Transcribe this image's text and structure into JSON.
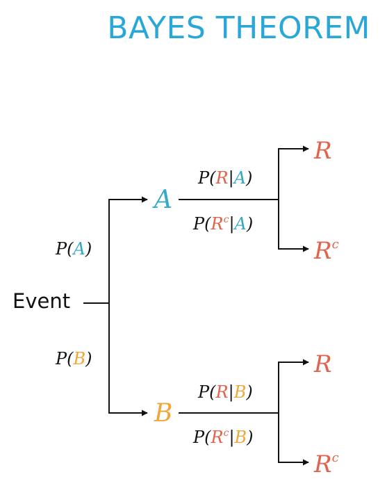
{
  "title": "BAYES THEOREM",
  "colors": {
    "title": "#29a8d8",
    "event_a": "#35a9c8",
    "event_b": "#f0a73a",
    "result": "#e2624c",
    "ink": "#111111"
  },
  "root": {
    "label": "Event"
  },
  "branch_a": {
    "prob_prefix": "P(",
    "prob_event": "A",
    "prob_suffix": ")",
    "node": "A",
    "upper": {
      "prefix": "P(",
      "result": "R",
      "bar": "|",
      "event": "A",
      "suffix": ")"
    },
    "lower": {
      "prefix": "P(",
      "result": "R",
      "sup": "c",
      "bar": "|",
      "event": "A",
      "suffix": ")"
    },
    "outcome_top": {
      "base": "R"
    },
    "outcome_bottom": {
      "base": "R",
      "sup": "c"
    }
  },
  "branch_b": {
    "prob_prefix": "P(",
    "prob_event": "B",
    "prob_suffix": ")",
    "node": "B",
    "upper": {
      "prefix": "P(",
      "result": "R",
      "bar": "|",
      "event": "B",
      "suffix": ")"
    },
    "lower": {
      "prefix": "P(",
      "result": "R",
      "sup": "c",
      "bar": "|",
      "event": "B",
      "suffix": ")"
    },
    "outcome_top": {
      "base": "R"
    },
    "outcome_bottom": {
      "base": "R",
      "sup": "c"
    }
  }
}
